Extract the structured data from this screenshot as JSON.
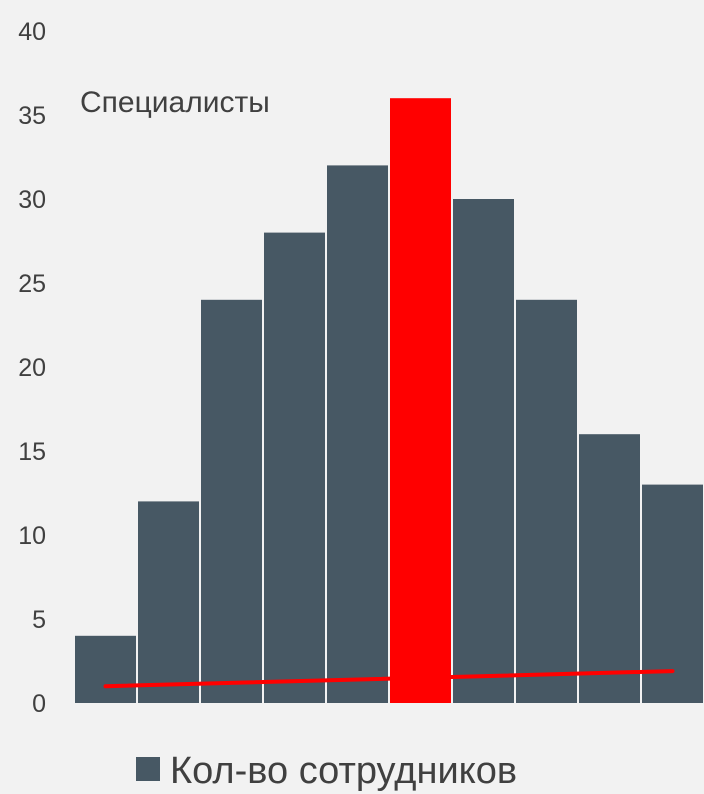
{
  "chart_data": {
    "type": "bar",
    "title": "Специалисты",
    "ylim": [
      0,
      40
    ],
    "yticks": [
      0,
      5,
      10,
      15,
      20,
      25,
      30,
      35,
      40
    ],
    "series": [
      {
        "name": "Кол-во сотрудников",
        "values": [
          4,
          12,
          24,
          28,
          32,
          36,
          30,
          24,
          16,
          13
        ],
        "highlight_index": 5
      }
    ],
    "trend_line": {
      "start": 1.0,
      "end": 1.9
    },
    "grid": false,
    "legend_position": "bottom",
    "colors": {
      "background": "#f2f2f2",
      "bar": "#475864",
      "highlight": "#ff0000",
      "trend": "#ff0000",
      "text": "#404040"
    }
  }
}
